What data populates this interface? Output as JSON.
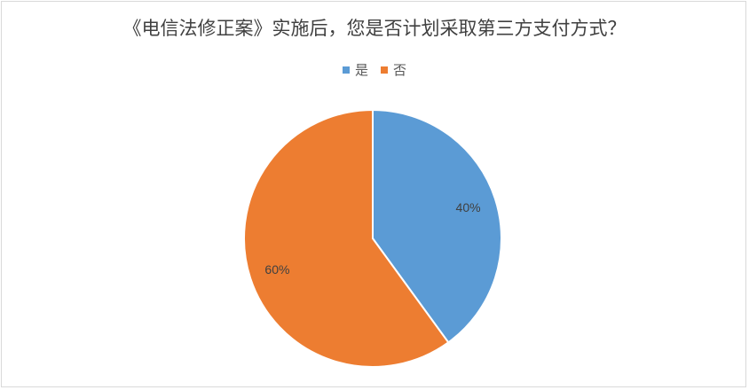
{
  "chart_data": {
    "type": "pie",
    "title": "《电信法修正案》实施后，您是否计划采取第三方支付方式？",
    "categories": [
      "是",
      "否"
    ],
    "values": [
      40,
      60
    ],
    "data_labels": [
      "40%",
      "60%"
    ],
    "colors": [
      "#5B9BD5",
      "#ED7D31"
    ],
    "legend_position": "top"
  }
}
